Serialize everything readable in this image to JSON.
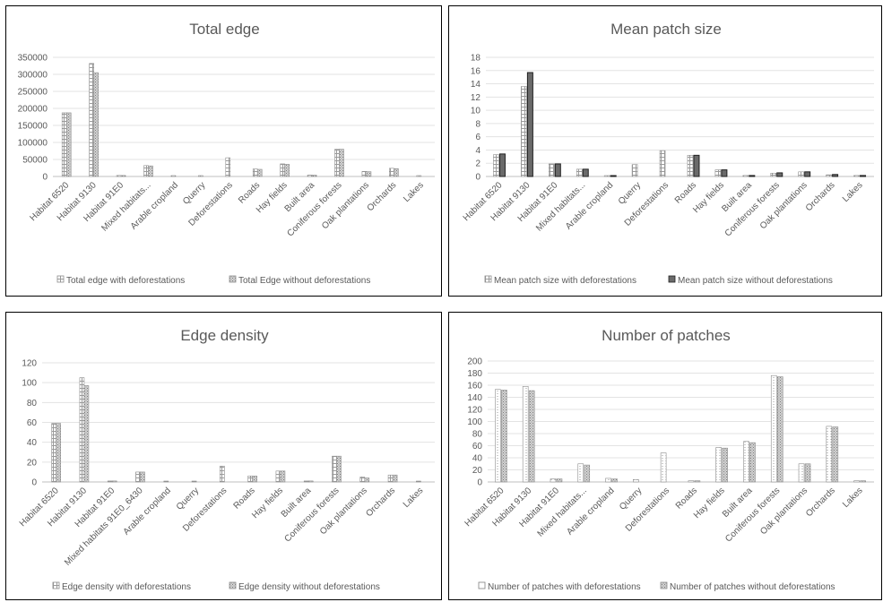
{
  "chart_data": [
    {
      "type": "bar",
      "title": "Total edge",
      "categories": [
        "Habitat 6520",
        "Habitat 9130",
        "Habitat 91E0",
        "Mixed habitats...",
        "Arable cropland",
        "Querry",
        "Deforestations",
        "Roads",
        "Hay fields",
        "Built area",
        "Coniferous forests",
        "Oak plantations",
        "Orchards",
        "Lakes"
      ],
      "series": [
        {
          "name": "Total edge with deforestations",
          "values": [
            187000,
            332000,
            3000,
            32000,
            2000,
            2000,
            55000,
            22000,
            37000,
            4000,
            80000,
            15000,
            24000,
            1500
          ]
        },
        {
          "name": "Total Edge without deforestations",
          "values": [
            187000,
            305000,
            3000,
            31000,
            0,
            0,
            0,
            21000,
            36000,
            4000,
            80000,
            14000,
            23000,
            0
          ]
        }
      ],
      "yticks": [
        "0",
        "50000",
        "100000",
        "150000",
        "200000",
        "250000",
        "300000",
        "350000"
      ],
      "ylim": [
        0,
        350000
      ],
      "legend_position": "bottom",
      "grid": true
    },
    {
      "type": "bar",
      "title": "Mean patch size",
      "categories": [
        "Habitat 6520",
        "Habitat 9130",
        "Habitat 91E0",
        "Mixed habitats...",
        "Arable cropland",
        "Querry",
        "Deforestations",
        "Roads",
        "Hay fields",
        "Built area",
        "Coniferous forests",
        "Oak plantations",
        "Orchards",
        "Lakes"
      ],
      "series": [
        {
          "name": "Mean patch size with deforestations",
          "values": [
            3.3,
            13.6,
            1.9,
            1.1,
            0.1,
            1.8,
            3.9,
            3.2,
            1.0,
            0.15,
            0.5,
            0.7,
            0.25,
            0.15
          ]
        },
        {
          "name": "Mean patch size without deforestations",
          "values": [
            3.4,
            15.7,
            1.9,
            1.1,
            0.1,
            0,
            0,
            3.2,
            1.0,
            0.15,
            0.55,
            0.7,
            0.3,
            0.15
          ]
        }
      ],
      "yticks": [
        "0",
        "2",
        "4",
        "6",
        "8",
        "10",
        "12",
        "14",
        "16",
        "18"
      ],
      "ylim": [
        0,
        18
      ],
      "legend_position": "bottom",
      "grid": true
    },
    {
      "type": "bar",
      "title": "Edge density",
      "categories": [
        "Habitat 6520",
        "Habitat 9130",
        "Habitat 91E0",
        "Mixed habitats 91E0_6430",
        "Arable cropland",
        "Querry",
        "Deforestations",
        "Roads",
        "Hay fields",
        "Built area",
        "Coniferous forests",
        "Oak plantations",
        "Orchards",
        "Lakes"
      ],
      "series": [
        {
          "name": "Edge density with deforestations",
          "values": [
            59,
            105,
            1,
            10,
            0.5,
            0.5,
            16,
            6,
            11,
            1,
            26,
            5,
            7,
            0.5
          ]
        },
        {
          "name": "Edge density without deforestations",
          "values": [
            59,
            97,
            1,
            10,
            0,
            0,
            0,
            6,
            11,
            1,
            26,
            4,
            7,
            0
          ]
        }
      ],
      "yticks": [
        "0",
        "20",
        "40",
        "60",
        "80",
        "100",
        "120"
      ],
      "ylim": [
        0,
        120
      ],
      "legend_position": "bottom",
      "grid": true
    },
    {
      "type": "bar",
      "title": "Number of patches",
      "categories": [
        "Habitat 6520",
        "Habitat 9130",
        "Habitat 91E0",
        "Mixed habitats...",
        "Arable cropland",
        "Querry",
        "Deforestations",
        "Roads",
        "Hay fields",
        "Built area",
        "Coniferous forests",
        "Oak plantations",
        "Orchards",
        "Lakes"
      ],
      "series": [
        {
          "name": "Number of patches with deforestations",
          "values": [
            153,
            158,
            5,
            30,
            6,
            4,
            48,
            2,
            57,
            67,
            176,
            30,
            92,
            2
          ]
        },
        {
          "name": "Number of patches without deforestations",
          "values": [
            152,
            151,
            5,
            28,
            5,
            0,
            0,
            2,
            56,
            65,
            174,
            30,
            91,
            2
          ]
        }
      ],
      "yticks": [
        "0",
        "20",
        "40",
        "60",
        "80",
        "100",
        "120",
        "140",
        "160",
        "180",
        "200"
      ],
      "ylim": [
        0,
        200
      ],
      "legend_position": "bottom",
      "grid": true
    }
  ]
}
